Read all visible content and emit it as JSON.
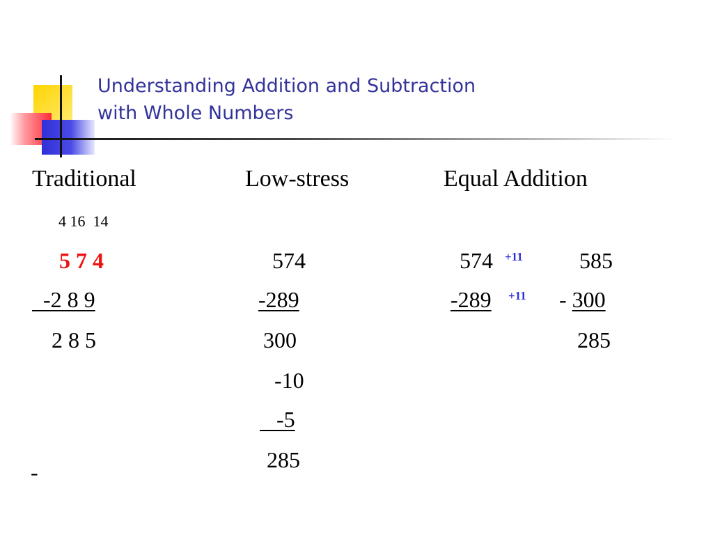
{
  "slide": {
    "title_line1": "Understanding Addition and Subtraction",
    "title_line2": "with Whole Numbers"
  },
  "headers": {
    "traditional": "Traditional",
    "low_stress": "Low-stress",
    "equal_addition": "Equal Addition"
  },
  "traditional": {
    "regroup": "4 16  14",
    "minuend": "5 7 4",
    "subtrahend": "  -2 8 9",
    "difference": "2 8 5",
    "stray_mark": "-"
  },
  "low_stress": {
    "minuend": "574",
    "subtrahend": "-289",
    "step1": "300",
    "step2": "-10",
    "step3": "   -5",
    "result": "285"
  },
  "equal_addition": {
    "minuend": "574",
    "plus_top": "+11",
    "subtrahend": "-289",
    "plus_bottom": "+11",
    "new_minuend": "585",
    "new_subtrahend_sign": "- ",
    "new_subtrahend": "300",
    "result": "285"
  },
  "colors": {
    "title": "#33339a",
    "highlight": "#ee1111",
    "annotation": "#2a2ad8"
  }
}
